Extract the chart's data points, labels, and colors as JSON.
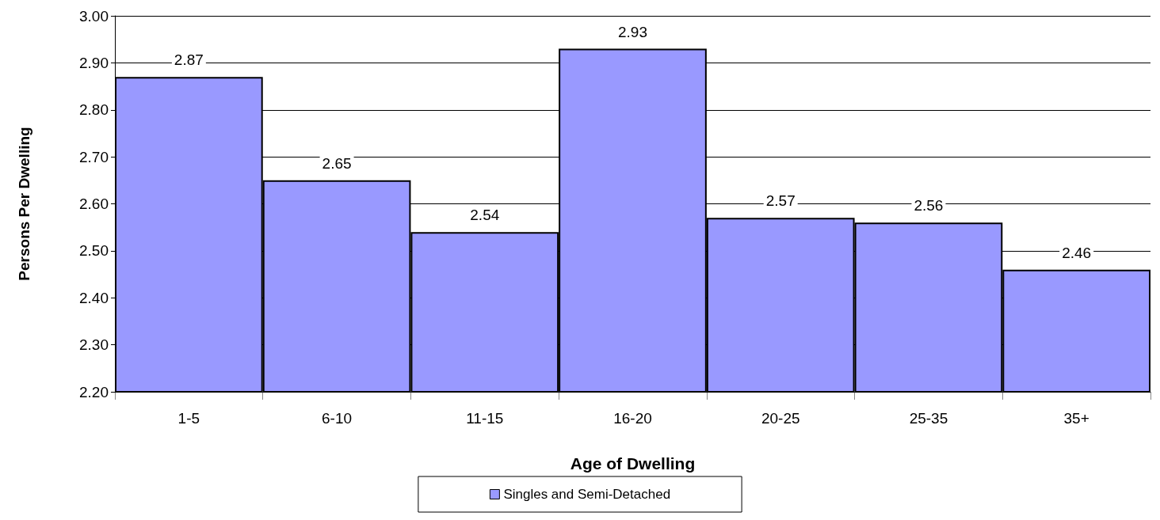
{
  "chart_data": {
    "type": "bar",
    "xlabel": "Age of Dwelling",
    "ylabel": "Persons Per Dwelling",
    "categories": [
      "1-5",
      "6-10",
      "11-15",
      "16-20",
      "20-25",
      "25-35",
      "35+"
    ],
    "series": [
      {
        "name": "Singles and Semi-Detached",
        "color": "#9999ff",
        "values": [
          2.87,
          2.65,
          2.54,
          2.93,
          2.57,
          2.56,
          2.46
        ]
      }
    ],
    "ylim": [
      2.2,
      3.0
    ],
    "yticks": [
      {
        "value": 2.2,
        "label": "2.20"
      },
      {
        "value": 2.3,
        "label": "2.30"
      },
      {
        "value": 2.4,
        "label": "2.40"
      },
      {
        "value": 2.5,
        "label": "2.50"
      },
      {
        "value": 2.6,
        "label": "2.60"
      },
      {
        "value": 2.7,
        "label": "2.70"
      },
      {
        "value": 2.8,
        "label": "2.80"
      },
      {
        "value": 2.9,
        "label": "2.90"
      },
      {
        "value": 3.0,
        "label": "3.00"
      }
    ],
    "grid": "y",
    "legend": "bottom",
    "data_labels": true
  }
}
